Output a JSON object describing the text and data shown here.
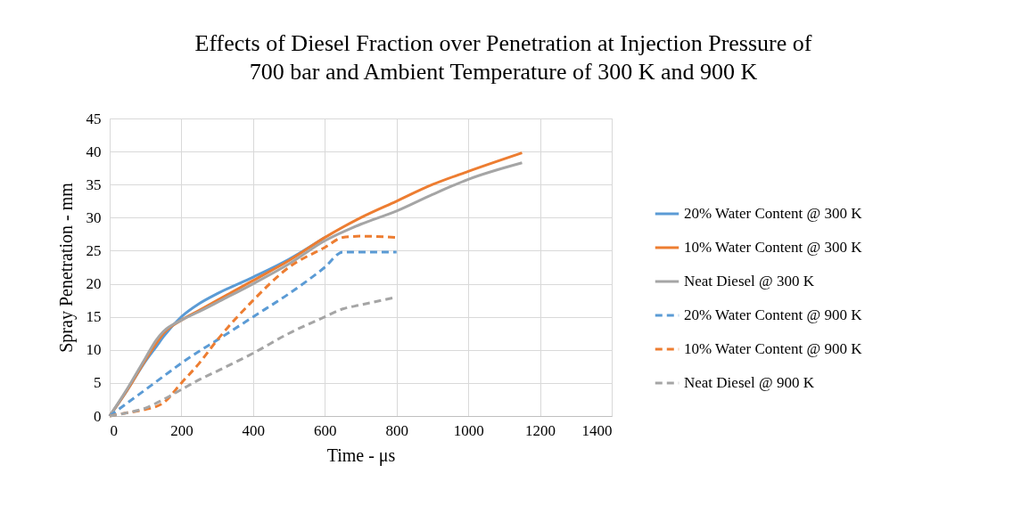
{
  "chart_data": {
    "type": "line",
    "title": "Effects of Diesel Fraction over Penetration at Injection Pressure of\n700 bar and Ambient Temperature of 300 K and 900 K",
    "xlabel": "Time - μs",
    "ylabel": "Spray Penetration - mm",
    "xlim": [
      0,
      1400
    ],
    "xticks": [
      0,
      200,
      400,
      600,
      800,
      1000,
      1200,
      1400
    ],
    "ylim": [
      0,
      45
    ],
    "yticks": [
      0,
      5,
      10,
      15,
      20,
      25,
      30,
      35,
      40,
      45
    ],
    "grid": true,
    "legend": "right",
    "series": [
      {
        "name": "20% Water Content @ 300 K",
        "color": "#5b9bd5",
        "line_style": "solid",
        "x": [
          0,
          50,
          100,
          130,
          150,
          200,
          250,
          300,
          400,
          500,
          600
        ],
        "values": [
          0,
          4,
          8.3,
          10.5,
          12,
          15,
          17,
          18.5,
          21,
          23.7,
          27
        ]
      },
      {
        "name": "10% Water Content @ 300 K",
        "color": "#ed7d31",
        "line_style": "solid",
        "x": [
          0,
          50,
          100,
          130,
          150,
          200,
          250,
          300,
          400,
          500,
          600,
          700,
          800,
          900,
          1000,
          1150
        ],
        "values": [
          0,
          4,
          8.5,
          11,
          12.5,
          14.5,
          16,
          17.5,
          20.5,
          23.5,
          27,
          30,
          32.5,
          35,
          37,
          39.8
        ]
      },
      {
        "name": "Neat Diesel @ 300 K",
        "color": "#a5a5a5",
        "line_style": "solid",
        "x": [
          0,
          50,
          100,
          130,
          150,
          200,
          250,
          300,
          400,
          500,
          600,
          700,
          800,
          900,
          1000,
          1150
        ],
        "values": [
          0,
          4.2,
          8.8,
          11.5,
          12.8,
          14.5,
          15.8,
          17.2,
          20,
          23,
          26.5,
          29,
          31,
          33.5,
          35.8,
          38.3
        ]
      },
      {
        "name": "20% Water Content @ 900 K",
        "color": "#5b9bd5",
        "line_style": "dashed",
        "x": [
          0,
          50,
          100,
          150,
          200,
          250,
          300,
          400,
          500,
          600,
          650,
          700,
          800
        ],
        "values": [
          0,
          2,
          4,
          6,
          8,
          9.8,
          11.5,
          15,
          18.5,
          22.5,
          24.8,
          24.8,
          24.8
        ]
      },
      {
        "name": "10% Water Content @ 900 K",
        "color": "#ed7d31",
        "line_style": "dashed",
        "x": [
          0,
          50,
          100,
          150,
          200,
          250,
          300,
          400,
          500,
          600,
          650,
          700,
          800
        ],
        "values": [
          0,
          0.5,
          1,
          2,
          5,
          8,
          11.5,
          17.5,
          22.5,
          25.5,
          27,
          27.2,
          27
        ]
      },
      {
        "name": "Neat Diesel @ 900 K",
        "color": "#a5a5a5",
        "line_style": "dashed",
        "x": [
          0,
          50,
          100,
          150,
          200,
          250,
          300,
          400,
          500,
          600,
          650,
          700,
          800
        ],
        "values": [
          0,
          0.5,
          1.2,
          2.5,
          4,
          5.5,
          6.8,
          9.5,
          12.5,
          15,
          16.2,
          16.8,
          18
        ]
      }
    ]
  }
}
